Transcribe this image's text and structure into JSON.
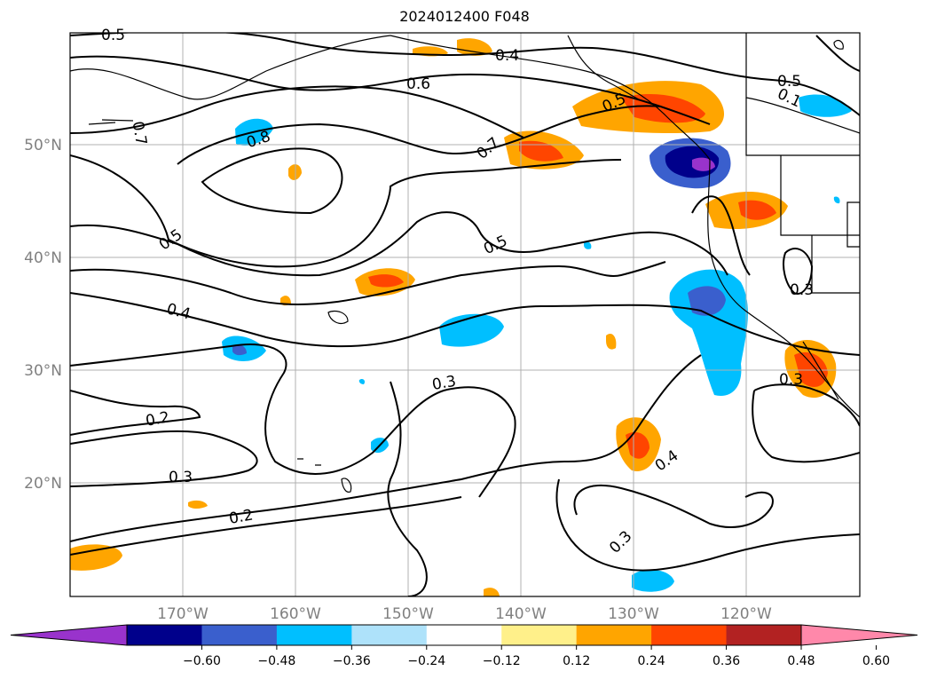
{
  "title": "2024012400 F048",
  "map": {
    "lat_ticks": [
      "50°N",
      "40°N",
      "30°N",
      "20°N"
    ],
    "lon_ticks": [
      "170°W",
      "160°W",
      "150°W",
      "140°W",
      "130°W",
      "120°W"
    ],
    "contour_labels": [
      "0.5",
      "0.4",
      "0.6",
      "0.7",
      "0.8",
      "0.5",
      "0.7",
      "0.5",
      "0.5",
      "0.4",
      "0.3",
      "0.2",
      "0.3",
      "0.2",
      "0.3",
      "0.4",
      "0.3",
      "0.3",
      "0.5",
      "0.1"
    ],
    "grid": true,
    "coastlines": true
  },
  "colorbar": {
    "ticks": [
      "−0.60",
      "−0.48",
      "−0.36",
      "−0.24",
      "−0.12",
      "0.12",
      "0.24",
      "0.36",
      "0.48",
      "0.60"
    ],
    "colors": [
      "#9933cc",
      "#00008b",
      "#3a5fcd",
      "#00bfff",
      "#aee2fa",
      "#ffffff",
      "#fff08a",
      "#ffa500",
      "#ff4500",
      "#b22222",
      "#ff88aa"
    ],
    "extend": "both"
  }
}
